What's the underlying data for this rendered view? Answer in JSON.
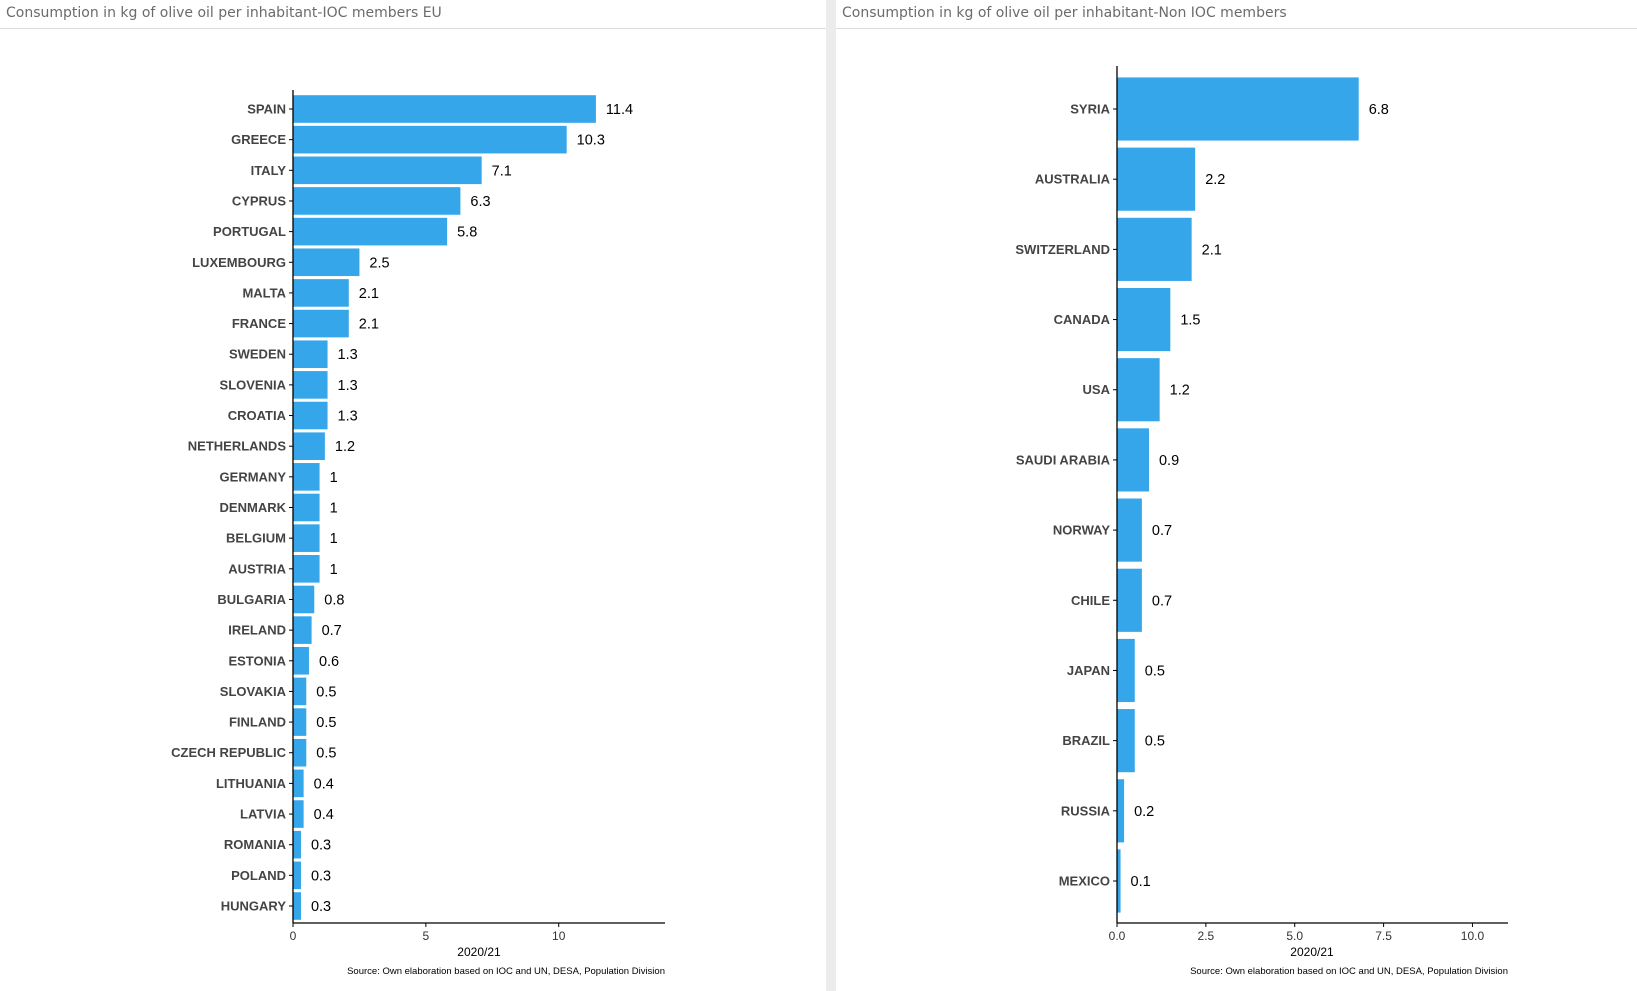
{
  "panels": {
    "left_title": "Consumption in kg of olive oil per inhabitant-IOC members EU",
    "right_title": "Consumption in kg of olive oil per inhabitant-Non IOC members"
  },
  "colors": {
    "bar": "#35a6e9",
    "axis": "#000000",
    "divider": "#ececec"
  },
  "chart_data": [
    {
      "type": "bar",
      "orientation": "horizontal",
      "categories": [
        "SPAIN",
        "GREECE",
        "ITALY",
        "CYPRUS",
        "PORTUGAL",
        "LUXEMBOURG",
        "MALTA",
        "FRANCE",
        "SWEDEN",
        "SLOVENIA",
        "CROATIA",
        "NETHERLANDS",
        "GERMANY",
        "DENMARK",
        "BELGIUM",
        "AUSTRIA",
        "BULGARIA",
        "IRELAND",
        "ESTONIA",
        "SLOVAKIA",
        "FINLAND",
        "CZECH REPUBLIC",
        "LITHUANIA",
        "LATVIA",
        "ROMANIA",
        "POLAND",
        "HUNGARY"
      ],
      "values": [
        11.4,
        10.3,
        7.1,
        6.3,
        5.8,
        2.5,
        2.1,
        2.1,
        1.3,
        1.3,
        1.3,
        1.2,
        1,
        1,
        1,
        1,
        0.8,
        0.7,
        0.6,
        0.5,
        0.5,
        0.5,
        0.4,
        0.4,
        0.3,
        0.3,
        0.3
      ],
      "data_labels": [
        "11.4",
        "10.3",
        "7.1",
        "6.3",
        "5.8",
        "2.5",
        "2.1",
        "2.1",
        "1.3",
        "1.3",
        "1.3",
        "1.2",
        "1",
        "1",
        "1",
        "1",
        "0.8",
        "0.7",
        "0.6",
        "0.5",
        "0.5",
        "0.5",
        "0.4",
        "0.4",
        "0.3",
        "0.3",
        "0.3"
      ],
      "xticks": [
        0,
        5,
        10
      ],
      "xtick_labels": [
        "0",
        "5",
        "10"
      ],
      "xlim": [
        0,
        14
      ],
      "xlabel": "2020/21",
      "caption": "Source: Own elaboration based on IOC and UN, DESA, Population Division",
      "grid": false
    },
    {
      "type": "bar",
      "orientation": "horizontal",
      "categories": [
        "SYRIA",
        "AUSTRALIA",
        "SWITZERLAND",
        "CANADA",
        "USA",
        "SAUDI ARABIA",
        "NORWAY",
        "CHILE",
        "JAPAN",
        "BRAZIL",
        "RUSSIA",
        "MEXICO"
      ],
      "values": [
        6.8,
        2.2,
        2.1,
        1.5,
        1.2,
        0.9,
        0.7,
        0.7,
        0.5,
        0.5,
        0.2,
        0.1
      ],
      "data_labels": [
        "6.8",
        "2.2",
        "2.1",
        "1.5",
        "1.2",
        "0.9",
        "0.7",
        "0.7",
        "0.5",
        "0.5",
        "0.2",
        "0.1"
      ],
      "xticks": [
        0,
        2.5,
        5,
        7.5,
        10
      ],
      "xtick_labels": [
        "0.0",
        "2.5",
        "5.0",
        "7.5",
        "10.0"
      ],
      "xlim": [
        0,
        11
      ],
      "xlabel": "2020/21",
      "caption": "Source: Own elaboration based on IOC and UN, DESA, Population Division",
      "grid": false
    }
  ]
}
